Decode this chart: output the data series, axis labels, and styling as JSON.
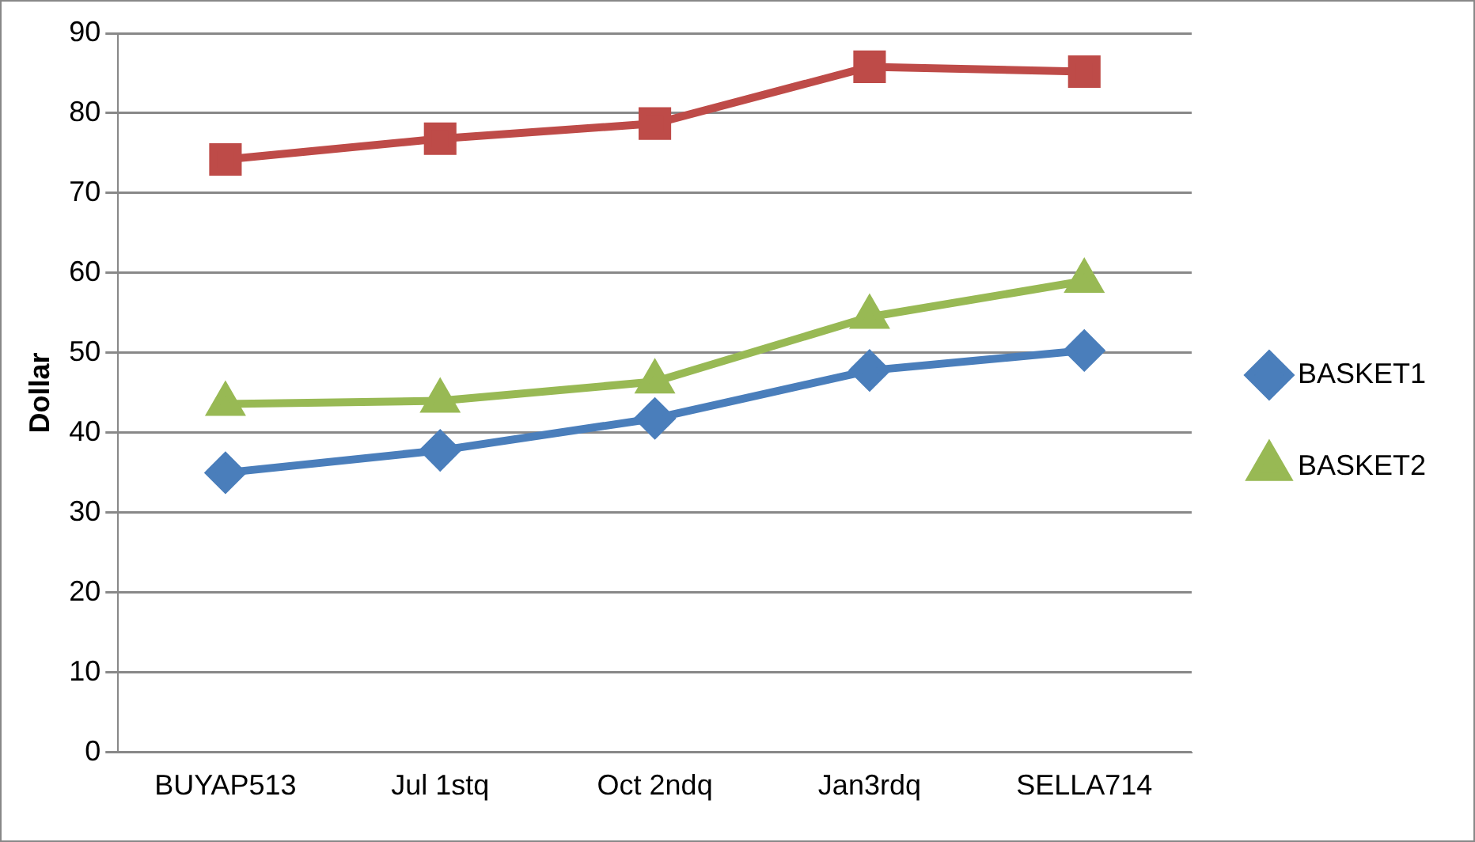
{
  "chart_data": {
    "type": "line",
    "ylabel": "Dollar",
    "categories": [
      "BUYAP513",
      "Jul 1stq",
      "Oct 2ndq",
      "Jan3rdq",
      "SELLA714"
    ],
    "series": [
      {
        "name": "BASKET1",
        "color": "#4a7ebb",
        "marker": "diamond",
        "values": [
          35,
          37.8,
          41.8,
          47.8,
          50.3
        ]
      },
      {
        "color": "#be4b48",
        "marker": "square",
        "values": [
          74.2,
          76.8,
          78.7,
          85.8,
          85.2
        ]
      },
      {
        "name": "BASKET2",
        "color": "#98b954",
        "marker": "triangle",
        "values": [
          43.6,
          44,
          46.4,
          54.5,
          59
        ]
      }
    ],
    "ylim": [
      0,
      90
    ],
    "yticks": [
      0,
      10,
      20,
      30,
      40,
      50,
      60,
      70,
      80,
      90
    ],
    "grid": "y",
    "legend": "right"
  }
}
